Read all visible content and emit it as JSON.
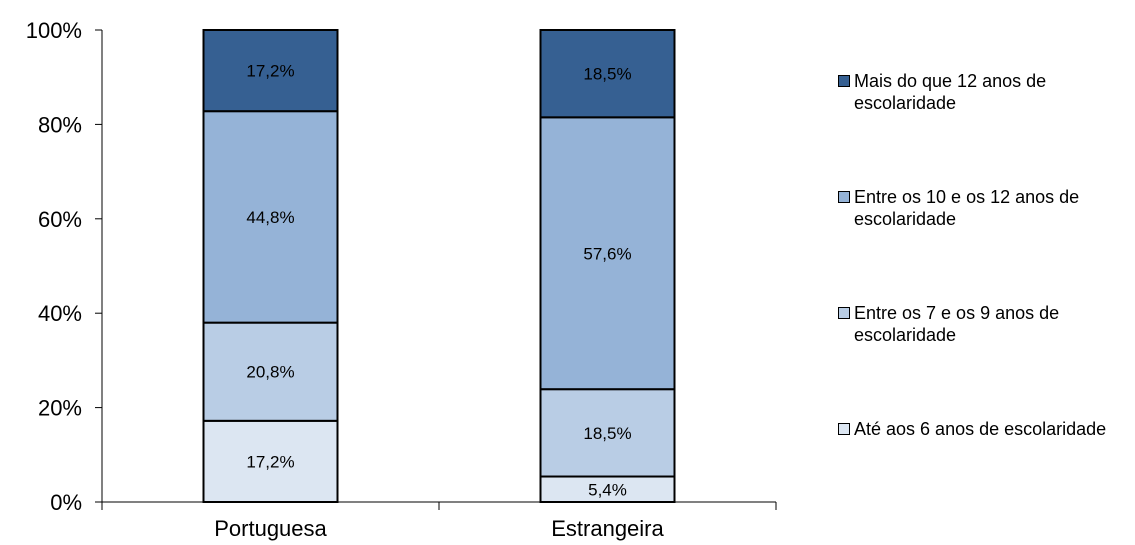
{
  "chart_data": {
    "type": "bar",
    "stacked": true,
    "categories": [
      "Portuguesa",
      "Estrangeira"
    ],
    "series": [
      {
        "name": "Até aos 6 anos de escolaridade",
        "values": [
          17.2,
          5.4
        ],
        "labels": [
          "17,2%",
          "5,4%"
        ],
        "color": "#dce6f2"
      },
      {
        "name": "Entre os 7 e os 9 anos de escolaridade",
        "values": [
          20.8,
          18.5
        ],
        "labels": [
          "20,8%",
          "18,5%"
        ],
        "color": "#b9cde5"
      },
      {
        "name": "Entre os 10 e os 12 anos de escolaridade",
        "values": [
          44.8,
          57.6
        ],
        "labels": [
          "44,8%",
          "57,6%"
        ],
        "color": "#95b3d7"
      },
      {
        "name": "Mais do que 12 anos de escolaridade",
        "values": [
          17.2,
          18.5
        ],
        "labels": [
          "17,2%",
          "18,5%"
        ],
        "color": "#366092"
      }
    ],
    "yticks": [
      "0%",
      "20%",
      "40%",
      "60%",
      "80%",
      "100%"
    ],
    "ylim": [
      0,
      100
    ],
    "legend_position": "right",
    "grid": false
  }
}
